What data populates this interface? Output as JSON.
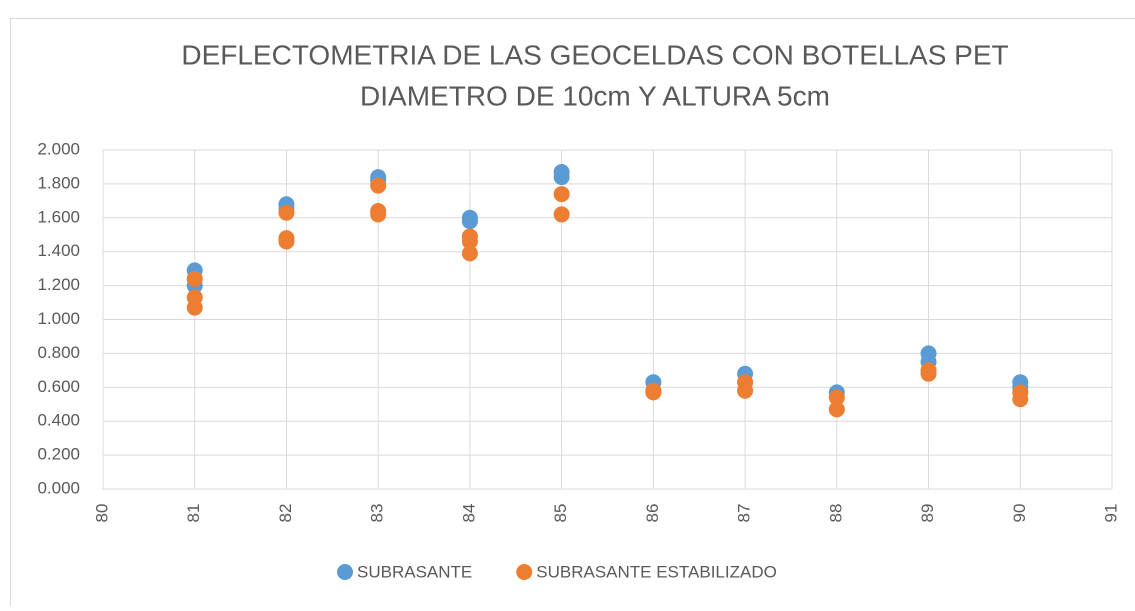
{
  "chart_data": {
    "type": "scatter",
    "title": [
      "DEFLECTOMETRIA DE LAS GEOCELDAS CON BOTELLAS PET",
      "DIAMETRO DE 10cm Y ALTURA 5cm"
    ],
    "series": [
      {
        "name": "SUBRASANTE",
        "color": "#5b9bd5",
        "x": [
          81,
          81,
          82,
          82,
          83,
          83,
          84,
          84,
          85,
          85,
          86,
          87,
          88,
          89,
          89,
          90,
          90
        ],
        "y": [
          1.29,
          1.2,
          1.68,
          1.65,
          1.84,
          1.82,
          1.6,
          1.58,
          1.87,
          1.84,
          0.63,
          0.68,
          0.57,
          0.8,
          0.75,
          0.63,
          0.6
        ]
      },
      {
        "name": "SUBRASANTE ESTABILIZADO",
        "color": "#ed7d31",
        "x": [
          81,
          81,
          81,
          82,
          82,
          82,
          83,
          83,
          83,
          84,
          84,
          84,
          85,
          85,
          86,
          86,
          87,
          87,
          88,
          88,
          89,
          89,
          90,
          90
        ],
        "y": [
          1.24,
          1.13,
          1.07,
          1.63,
          1.48,
          1.46,
          1.79,
          1.64,
          1.62,
          1.49,
          1.46,
          1.39,
          1.74,
          1.62,
          0.58,
          0.57,
          0.63,
          0.58,
          0.54,
          0.47,
          0.7,
          0.68,
          0.57,
          0.53
        ]
      }
    ],
    "xlim": [
      80,
      91
    ],
    "xticks": [
      80,
      81,
      82,
      83,
      84,
      85,
      86,
      87,
      88,
      89,
      90,
      91
    ],
    "ylim": [
      0,
      2
    ],
    "yticks": [
      {
        "value": 0,
        "label": "0.000"
      },
      {
        "value": 0.2,
        "label": "0.200"
      },
      {
        "value": 0.4,
        "label": "0.400"
      },
      {
        "value": 0.6,
        "label": "0.600"
      },
      {
        "value": 0.8,
        "label": "0.800"
      },
      {
        "value": 1.0,
        "label": "1.000"
      },
      {
        "value": 1.2,
        "label": "1.200"
      },
      {
        "value": 1.4,
        "label": "1.400"
      },
      {
        "value": 1.6,
        "label": "1.600"
      },
      {
        "value": 1.8,
        "label": "1.800"
      },
      {
        "value": 2.0,
        "label": "2.000"
      }
    ],
    "grid": true,
    "legend": "bottom"
  }
}
